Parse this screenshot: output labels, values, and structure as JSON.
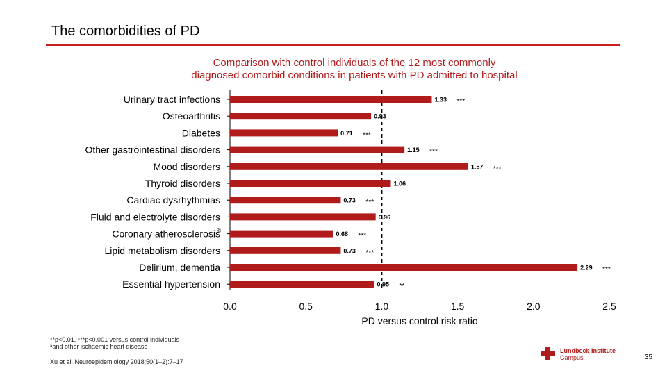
{
  "slide": {
    "title": "The comorbidities of PD",
    "page_number": "35"
  },
  "chart_data": {
    "type": "bar",
    "orientation": "horizontal",
    "title_lines": [
      "Comparison with control individuals of the 12 most commonly",
      "diagnosed comorbid conditions in patients with PD admitted to hospital"
    ],
    "xlabel": "PD versus control risk ratio",
    "xlim": [
      0.0,
      2.5
    ],
    "xticks": [
      "0.0",
      "0.5",
      "1.0",
      "1.5",
      "2.0",
      "2.5"
    ],
    "reference_line": 1.0,
    "bar_color": "#b01c1c",
    "categories": [
      "Urinary tract infections",
      "Osteoarthritis",
      "Diabetes",
      "Other gastrointestinal disorders",
      "Mood disorders",
      "Thyroid disorders",
      "Cardiac dysrhythmias",
      "Fluid and electrolyte disorders",
      "Coronary atherosclerosis",
      "Lipid metabolism disorders",
      "Delirium, dementia",
      "Essential hypertension"
    ],
    "category_superscripts": [
      "",
      "",
      "",
      "",
      "",
      "",
      "",
      "",
      "a",
      "",
      "",
      ""
    ],
    "values": [
      1.33,
      0.93,
      0.71,
      1.15,
      1.57,
      1.06,
      0.73,
      0.96,
      0.68,
      0.73,
      2.29,
      0.95
    ],
    "value_labels": [
      "1.33",
      "0.93",
      "0.71",
      "1.15",
      "1.57",
      "1.06",
      "0.73",
      "0.96",
      "0.68",
      "0.73",
      "2.29",
      "0.95"
    ],
    "significance": [
      "***",
      "",
      "***",
      "***",
      "***",
      "",
      "***",
      "",
      "***",
      "***",
      "***",
      "**"
    ]
  },
  "footnotes": {
    "significance": "**p<0.01, ***p<0.001 versus control individuals",
    "superscript_note": "ᵃand other ischaemic heart disease",
    "reference": "Xu et al. Neuroepidemiology 2018;50(1–2):7–17"
  },
  "logo": {
    "name": "Lundbeck Institute",
    "sub": "Campus",
    "color": "#b01c1c"
  }
}
